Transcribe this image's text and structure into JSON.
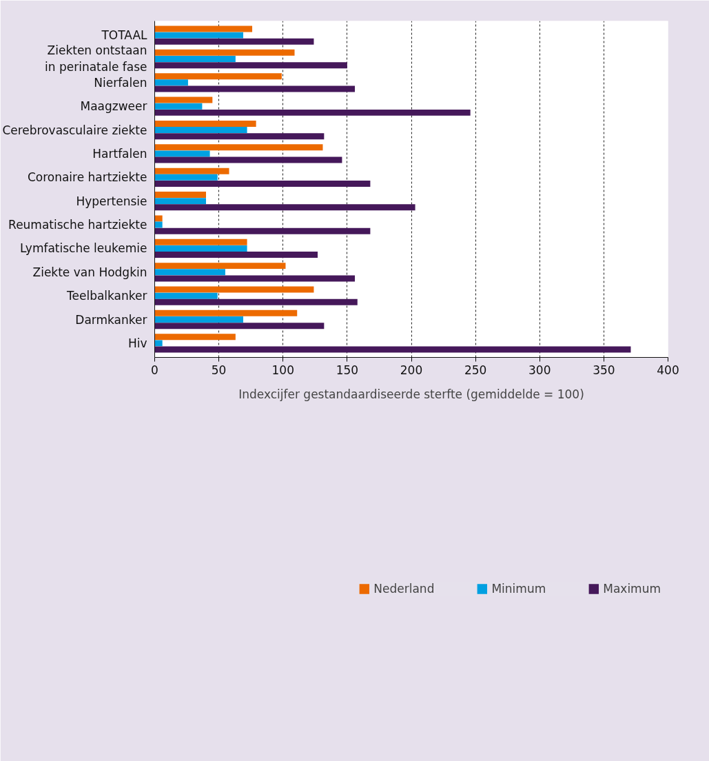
{
  "chart_data": {
    "type": "bar",
    "orientation": "horizontal",
    "xlabel": "Indexcijfer gestandaardiseerde sterfte (gemiddelde = 100)",
    "categories": [
      "TOTAAL",
      "Ziekten ontstaan\nin perinatale fase",
      "Nierfalen",
      "Maagzweer",
      "Cerebrovasculaire ziekte",
      "Hartfalen",
      "Coronaire hartziekte",
      "Hypertensie",
      "Reumatische hartziekte",
      "Lymfatische leukemie",
      "Ziekte van Hodgkin",
      "Teelbalkanker",
      "Darmkanker",
      "Hiv"
    ],
    "series": [
      {
        "name": "Nederland",
        "color": "#ec6a00",
        "values": [
          76,
          109,
          99,
          45,
          79,
          131,
          58,
          40,
          6,
          72,
          102,
          124,
          111,
          63
        ]
      },
      {
        "name": "Minimum",
        "color": "#00a0e1",
        "values": [
          69,
          63,
          26,
          37,
          72,
          43,
          49,
          40,
          6,
          72,
          55,
          49,
          69,
          6
        ]
      },
      {
        "name": "Maximum",
        "color": "#45185a",
        "values": [
          124,
          150,
          156,
          246,
          132,
          146,
          168,
          203,
          168,
          127,
          156,
          158,
          132,
          371
        ]
      }
    ],
    "xlim": [
      0,
      400
    ],
    "xticks": [
      0,
      50,
      100,
      150,
      200,
      250,
      300,
      350,
      400
    ],
    "grid": "x",
    "legend": "bottom"
  }
}
